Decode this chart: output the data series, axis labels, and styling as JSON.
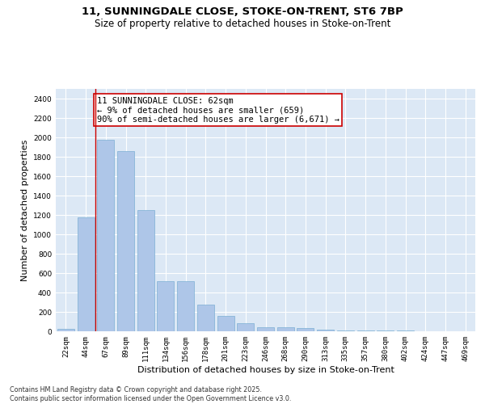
{
  "title_line1": "11, SUNNINGDALE CLOSE, STOKE-ON-TRENT, ST6 7BP",
  "title_line2": "Size of property relative to detached houses in Stoke-on-Trent",
  "xlabel": "Distribution of detached houses by size in Stoke-on-Trent",
  "ylabel": "Number of detached properties",
  "categories": [
    "22sqm",
    "44sqm",
    "67sqm",
    "89sqm",
    "111sqm",
    "134sqm",
    "156sqm",
    "178sqm",
    "201sqm",
    "223sqm",
    "246sqm",
    "268sqm",
    "290sqm",
    "313sqm",
    "335sqm",
    "357sqm",
    "380sqm",
    "402sqm",
    "424sqm",
    "447sqm",
    "469sqm"
  ],
  "values": [
    25,
    1175,
    1975,
    1855,
    1250,
    520,
    520,
    275,
    160,
    85,
    45,
    45,
    35,
    15,
    8,
    5,
    5,
    5,
    3,
    2,
    2
  ],
  "bar_color": "#aec6e8",
  "bar_edge_color": "#7bafd4",
  "vline_color": "#cc0000",
  "annotation_text": "11 SUNNINGDALE CLOSE: 62sqm\n← 9% of detached houses are smaller (659)\n90% of semi-detached houses are larger (6,671) →",
  "annotation_box_color": "#ffffff",
  "annotation_box_edge": "#cc0000",
  "ylim": [
    0,
    2500
  ],
  "yticks": [
    0,
    200,
    400,
    600,
    800,
    1000,
    1200,
    1400,
    1600,
    1800,
    2000,
    2200,
    2400
  ],
  "background_color": "#dce8f5",
  "footer_text": "Contains HM Land Registry data © Crown copyright and database right 2025.\nContains public sector information licensed under the Open Government Licence v3.0.",
  "title_fontsize": 9.5,
  "subtitle_fontsize": 8.5,
  "axis_label_fontsize": 8,
  "tick_fontsize": 6.5,
  "annotation_fontsize": 7.5,
  "footer_fontsize": 5.8
}
